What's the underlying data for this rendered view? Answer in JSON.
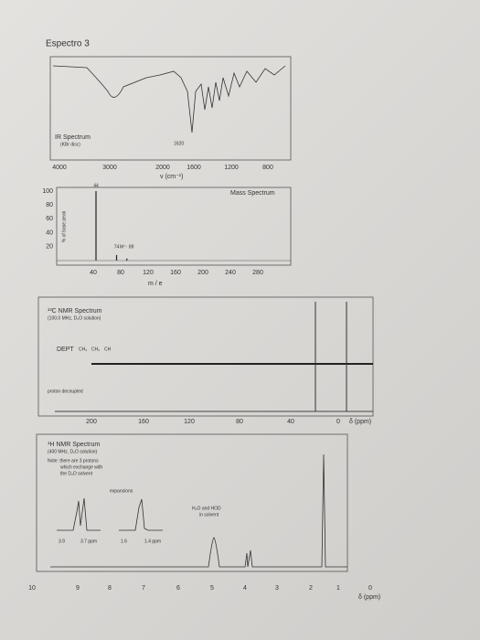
{
  "title": "Espectro 3",
  "ir": {
    "label": "IR Spectrum",
    "sub": "(KBr disc)",
    "peak": "1620",
    "xticks": [
      "4000",
      "3000",
      "2000",
      "1600",
      "1200",
      "800"
    ],
    "xlabel": "ν (cm⁻¹)"
  },
  "mass": {
    "label": "Mass Spectrum",
    "ylabel": "% of base peak",
    "xlabel": "m / e",
    "yticks": [
      "100",
      "80",
      "60",
      "40",
      "20"
    ],
    "xticks": [
      "40",
      "80",
      "120",
      "160",
      "200",
      "240",
      "280"
    ],
    "peaks": {
      "mz": [
        44,
        74,
        89
      ],
      "intensity": [
        100,
        8,
        3
      ]
    },
    "peak_labels": [
      "44",
      "74",
      "M⁺· 89"
    ]
  },
  "c13": {
    "label": "¹³C NMR Spectrum",
    "sub": "(100.0 MHz, D₂O solution)",
    "dept": "DEPT",
    "dept_types": [
      "CH₃",
      "CH₂",
      "CH"
    ],
    "decoupled": "proton decoupled",
    "xticks": [
      "200",
      "160",
      "120",
      "80",
      "40",
      "0"
    ],
    "xlabel": "δ (ppm)"
  },
  "h1": {
    "label": "¹H NMR Spectrum",
    "sub": "(400 MHz, D₂O solution)",
    "note": [
      "Note: there are 3 protons",
      "which exchange with",
      "the D₂O solvent"
    ],
    "expansions": "expansions",
    "exp_ticks": [
      "3.9",
      "3.7 ppm",
      "1.6",
      "1.4 ppm"
    ],
    "solvent": [
      "H₂O and HOD",
      "in solvent"
    ],
    "xticks": [
      "10",
      "9",
      "8",
      "7",
      "6",
      "5",
      "4",
      "3",
      "2",
      "1",
      "0"
    ],
    "xlabel": "δ (ppm)"
  }
}
